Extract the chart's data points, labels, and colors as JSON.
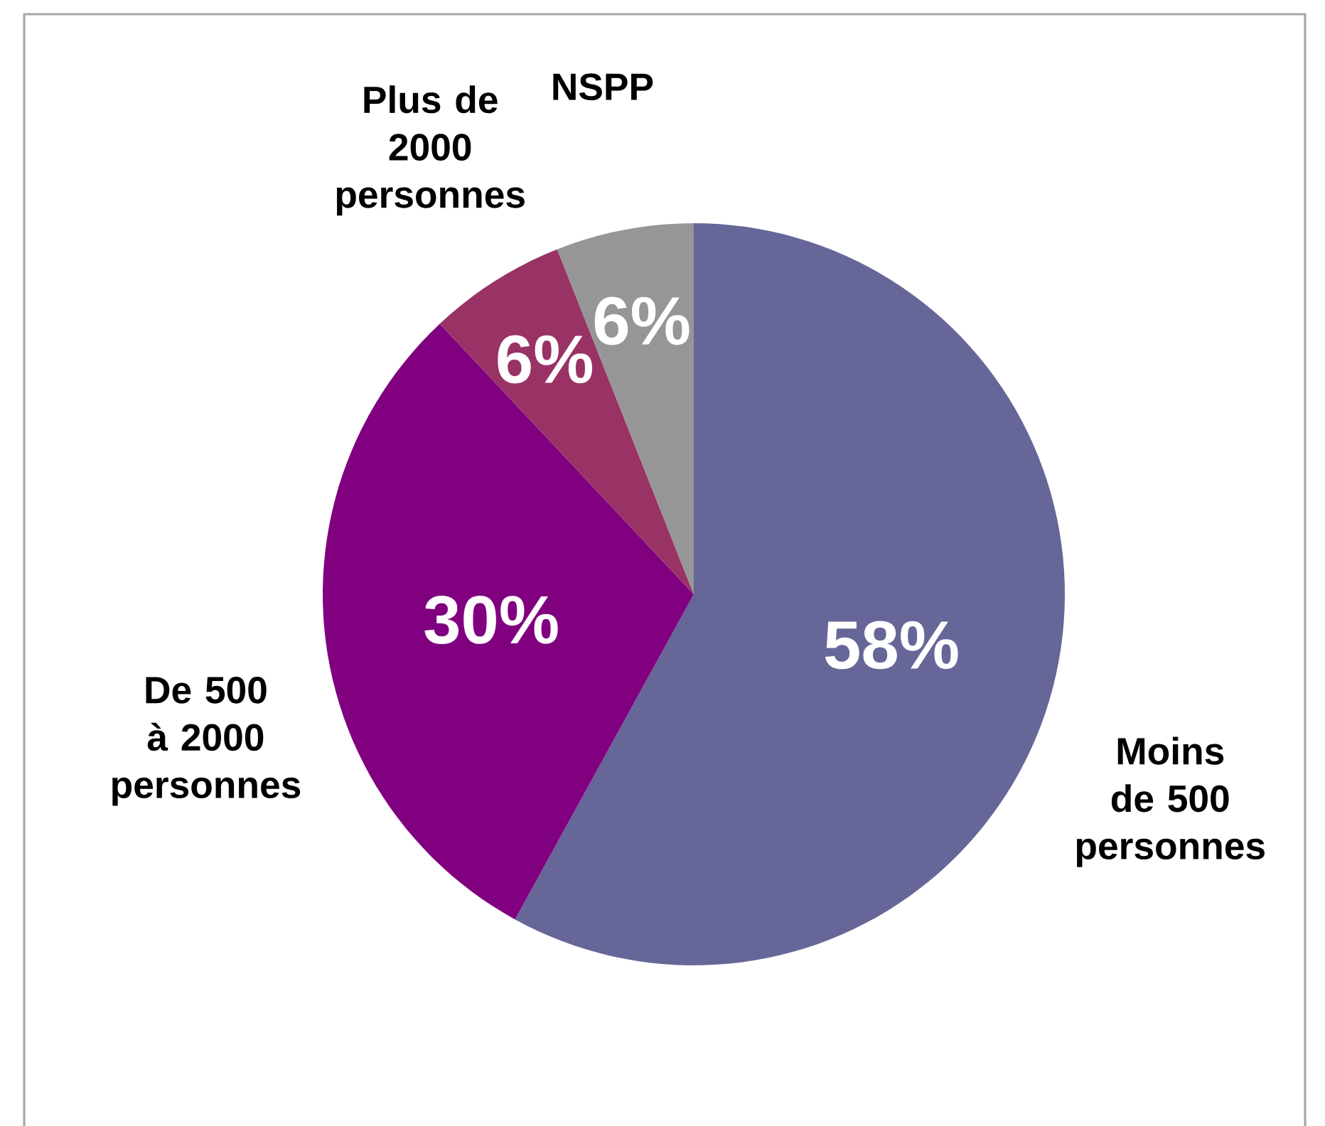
{
  "chart_data": {
    "type": "pie",
    "categories": [
      "Moins de 500 personnes",
      "De 500 à 2000 personnes",
      "Plus de 2000 personnes",
      "NSPP"
    ],
    "values": [
      58,
      30,
      6,
      6
    ],
    "value_labels": [
      "58%",
      "30%",
      "6%",
      "6%"
    ],
    "colors": [
      "#666699",
      "#800080",
      "#993366",
      "#969696"
    ]
  }
}
